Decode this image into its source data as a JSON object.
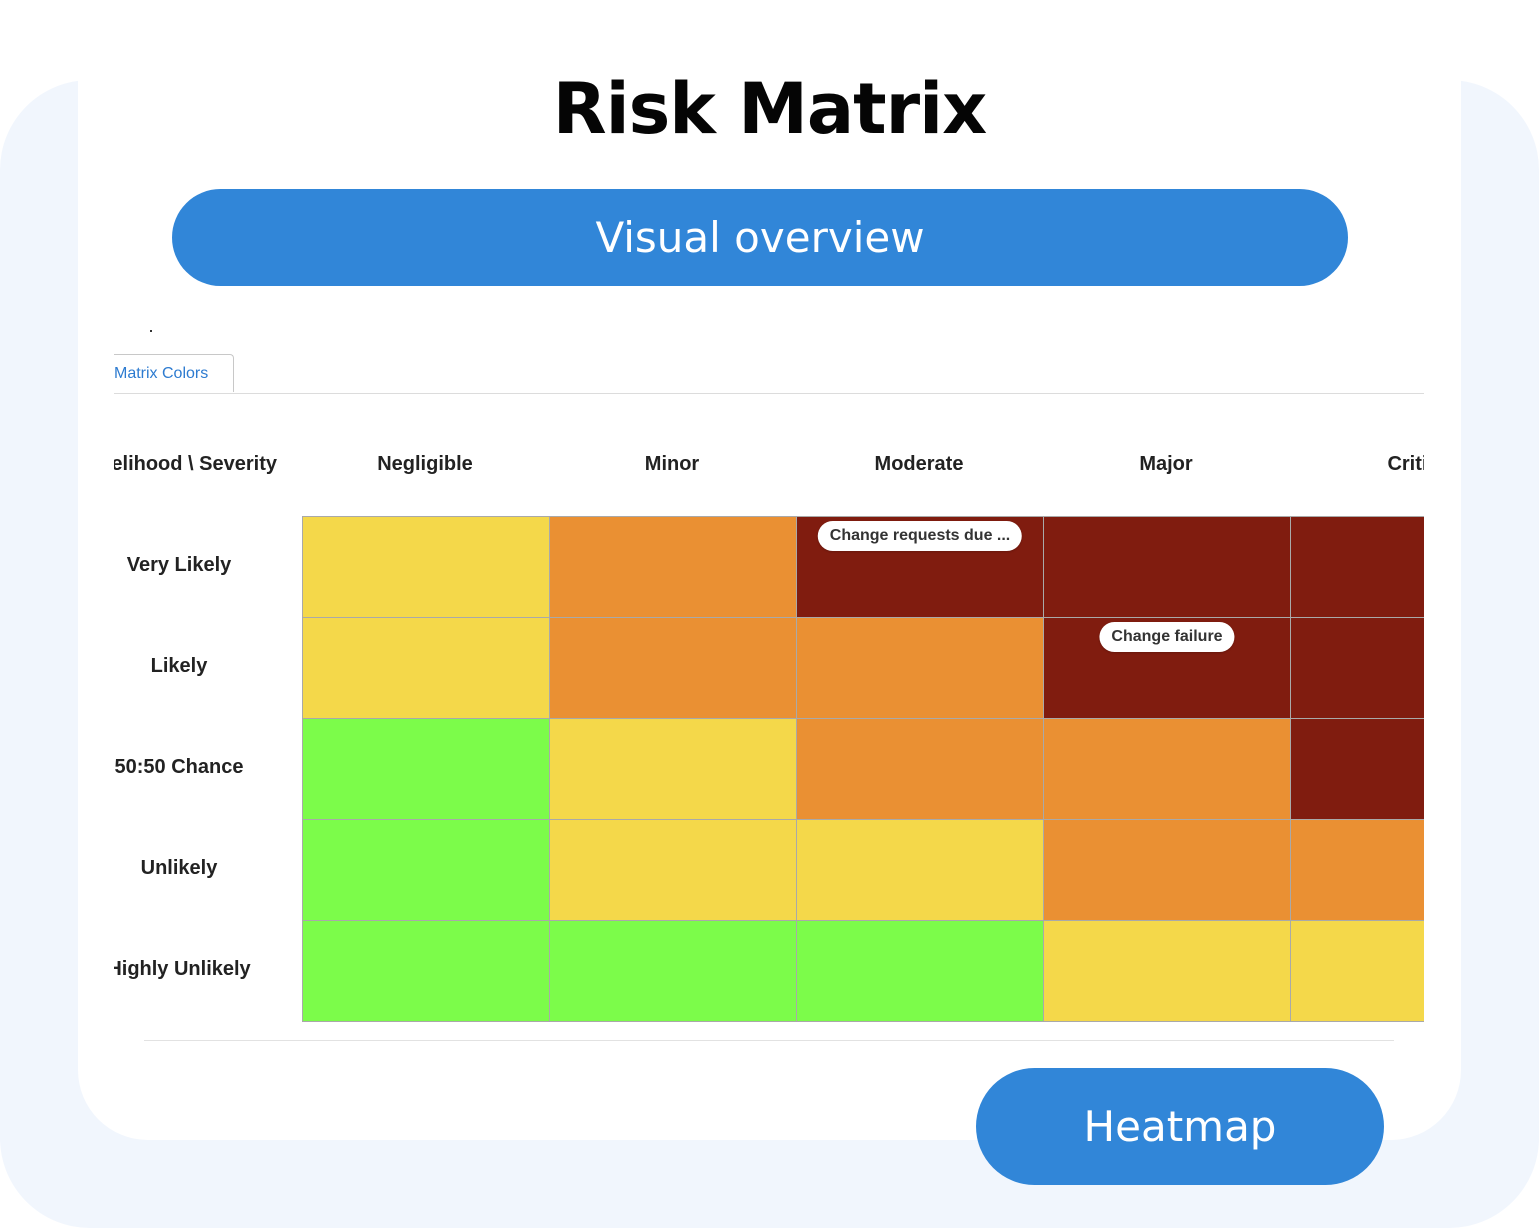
{
  "title": "Risk Matrix",
  "banner": {
    "label": "Visual overview"
  },
  "footer_badge": {
    "label": "Heatmap"
  },
  "matrix": {
    "tab_label": "Matrix Colors",
    "corner_label": "elihood \\ Severity",
    "severity_columns": [
      "Negligible",
      "Minor",
      "Moderate",
      "Major",
      "Critic"
    ],
    "likelihood_rows": [
      "Very Likely",
      "Likely",
      "50:50 Chance",
      "Unlikely",
      "Highly Unlikely"
    ],
    "palette": {
      "green": "#7cfc4a",
      "yellow": "#f4d84a",
      "orange": "#ea9033",
      "darkred": "#801c0f"
    },
    "cell_colors": [
      [
        "yellow",
        "orange",
        "darkred",
        "darkred",
        "darkred"
      ],
      [
        "yellow",
        "orange",
        "orange",
        "darkred",
        "darkred"
      ],
      [
        "green",
        "yellow",
        "orange",
        "orange",
        "darkred"
      ],
      [
        "green",
        "yellow",
        "yellow",
        "orange",
        "orange"
      ],
      [
        "green",
        "green",
        "green",
        "yellow",
        "yellow"
      ]
    ],
    "risk_chips": [
      {
        "row": 0,
        "col": 2,
        "label": "Change requests due ..."
      },
      {
        "row": 1,
        "col": 3,
        "label": "Change failure"
      }
    ]
  }
}
